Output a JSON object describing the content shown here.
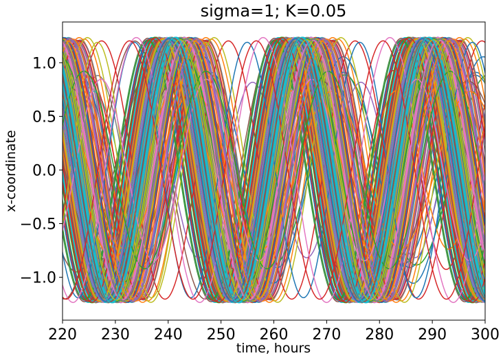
{
  "chart_data": {
    "type": "line",
    "title": "sigma=1; K=0.05",
    "xlabel": "time, hours",
    "ylabel": "x-coordinate",
    "xlim": [
      220,
      300
    ],
    "ylim": [
      -1.4,
      1.38
    ],
    "xticks": [
      220,
      230,
      240,
      250,
      260,
      270,
      280,
      290,
      300
    ],
    "xtick_labels": [
      "220",
      "230",
      "240",
      "250",
      "260",
      "270",
      "280",
      "290",
      "300"
    ],
    "yticks": [
      -1.0,
      -0.5,
      0.0,
      0.5,
      1.0
    ],
    "ytick_labels": [
      "−1.0",
      "−0.5",
      "0.0",
      "0.5",
      "1.0"
    ],
    "grid": false,
    "legend": "none",
    "period_hours": 24,
    "amplitude": 1.22,
    "first_peak_hour": 241.5,
    "n_oscillators": 250,
    "colors": [
      "#1f77b4",
      "#ff7f0e",
      "#2ca02c",
      "#d62728",
      "#9467bd",
      "#8c564b",
      "#e377c2",
      "#7f7f7f",
      "#bcbd22",
      "#17becf"
    ]
  }
}
